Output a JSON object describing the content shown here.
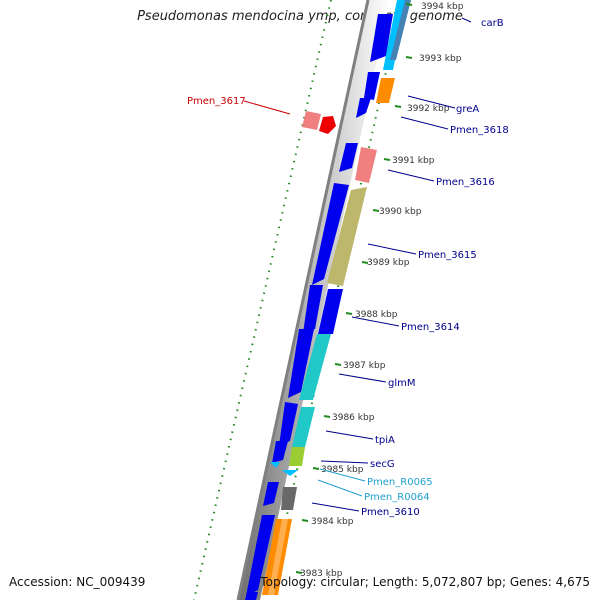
{
  "title": "Pseudomonas mendocina ymp, complete genome",
  "accession_text": "Accession: NC_009439",
  "summary_text": "Topology: circular; Length: 5,072,807 bp; Genes: 4,675",
  "colors": {
    "cds_forward": "#0000ee",
    "cds_reverse_pink": "#f08080",
    "cds_red": "#ee0000",
    "khaki": "#bdb76b",
    "cyan": "#20c8c8",
    "lime": "#9acd32",
    "gray": "#696969",
    "orange": "#ff8c00",
    "sky": "#00bfff",
    "steel": "#4682b4",
    "backbone": "#8a8a8a",
    "gc_tick": "#228b22",
    "label_blue": "#00008b",
    "label_red": "#cc0000",
    "label_cyan": "#20a0d0"
  },
  "ticks": [
    "3994 kbp",
    "3993 kbp",
    "3992 kbp",
    "3991 kbp",
    "3990 kbp",
    "3989 kbp",
    "3988 kbp",
    "3987 kbp",
    "3986 kbp",
    "3985 kbp",
    "3984 kbp",
    "3983 kbp"
  ],
  "gene_labels": [
    "carB",
    "greA",
    "Pmen_3618",
    "Pmen_3617",
    "Pmen_3616",
    "Pmen_3615",
    "Pmen_3614",
    "glmM",
    "tpiA",
    "secG",
    "Pmen_R0065",
    "Pmen_R0064",
    "Pmen_3610"
  ]
}
